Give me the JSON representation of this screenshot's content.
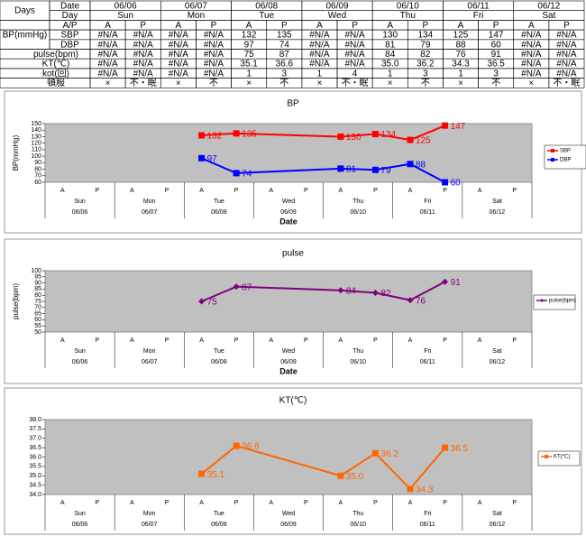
{
  "table": {
    "rows": [
      {
        "head": [
          "Days",
          "Date"
        ],
        "cells": [
          "06/06",
          "06/07",
          "06/08",
          "06/09",
          "06/10",
          "06/11",
          "06/12"
        ]
      },
      {
        "head": [
          "Day"
        ],
        "cells": [
          "Sun",
          "Mon",
          "Tue",
          "Wed",
          "Thu",
          "Fri",
          "Sat"
        ]
      },
      {
        "head": [
          "A/P"
        ],
        "cells": [
          "A",
          "P",
          "A",
          "P",
          "A",
          "P",
          "A",
          "P",
          "A",
          "P",
          "A",
          "P",
          "A",
          "P"
        ]
      },
      {
        "head": [
          "BP(mmHg)",
          "SBP"
        ],
        "cells": [
          "#N/A",
          "#N/A",
          "#N/A",
          "#N/A",
          "132",
          "135",
          "#N/A",
          "#N/A",
          "130",
          "134",
          "125",
          "147",
          "#N/A",
          "#N/A"
        ]
      },
      {
        "head": [
          "DBP"
        ],
        "cells": [
          "#N/A",
          "#N/A",
          "#N/A",
          "#N/A",
          "97",
          "74",
          "#N/A",
          "#N/A",
          "81",
          "79",
          "88",
          "60",
          "#N/A",
          "#N/A"
        ]
      },
      {
        "head": [
          "pulse(bpm)"
        ],
        "cells": [
          "#N/A",
          "#N/A",
          "#N/A",
          "#N/A",
          "75",
          "87",
          "#N/A",
          "#N/A",
          "84",
          "82",
          "76",
          "91",
          "#N/A",
          "#N/A"
        ]
      },
      {
        "head": [
          "KT(℃)"
        ],
        "cells": [
          "#N/A",
          "#N/A",
          "#N/A",
          "#N/A",
          "35.1",
          "36.6",
          "#N/A",
          "#N/A",
          "35.0",
          "36.2",
          "34.3",
          "36.5",
          "#N/A",
          "#N/A"
        ]
      },
      {
        "head": [
          "kot(回)"
        ],
        "cells": [
          "#N/A",
          "#N/A",
          "#N/A",
          "#N/A",
          "1",
          "3",
          "1",
          "4",
          "1",
          "3",
          "1",
          "3",
          "#N/A",
          "#N/A"
        ]
      },
      {
        "head": [
          "頓服"
        ],
        "cells": [
          "×",
          "不・眠",
          "×",
          "不",
          "×",
          "不",
          "×",
          "不・眠",
          "×",
          "不",
          "×",
          "不",
          "×",
          "不・眠"
        ]
      }
    ]
  },
  "chart_data": [
    {
      "type": "line",
      "title": "BP",
      "y_label": "BP(mmHg)",
      "x_label": "Date",
      "categories": [
        "A",
        "P",
        "A",
        "P",
        "A",
        "P",
        "A",
        "P",
        "A",
        "P",
        "A",
        "P",
        "A",
        "P"
      ],
      "days": [
        "Sun",
        "Mon",
        "Tue",
        "Wed",
        "Thu",
        "Fri",
        "Sat"
      ],
      "dates": [
        "06/06",
        "06/07",
        "06/08",
        "06/09",
        "06/10",
        "06/11",
        "06/12"
      ],
      "ylim": [
        60,
        150
      ],
      "yticks": [
        60,
        70,
        80,
        90,
        100,
        110,
        120,
        130,
        140,
        150
      ],
      "span_gaps": true,
      "legend": "right",
      "background": "#c0c0c0",
      "series": [
        {
          "name": "SBP",
          "color": "#ff0000",
          "marker": "square",
          "values": [
            null,
            null,
            null,
            null,
            132,
            135,
            null,
            null,
            130,
            134,
            125,
            147,
            null,
            null
          ]
        },
        {
          "name": "DBP",
          "color": "#0000ff",
          "marker": "square",
          "values": [
            null,
            null,
            null,
            null,
            97,
            74,
            null,
            null,
            81,
            79,
            88,
            60,
            null,
            null
          ]
        }
      ]
    },
    {
      "type": "line",
      "title": "pulse",
      "y_label": "pulse(bpm)",
      "x_label": "Date",
      "categories": [
        "A",
        "P",
        "A",
        "P",
        "A",
        "P",
        "A",
        "P",
        "A",
        "P",
        "A",
        "P",
        "A",
        "P"
      ],
      "days": [
        "Sun",
        "Mon",
        "Tue",
        "Wed",
        "Thu",
        "Fri",
        "Sat"
      ],
      "dates": [
        "06/06",
        "06/07",
        "06/08",
        "06/09",
        "06/10",
        "06/11",
        "06/12"
      ],
      "ylim": [
        50,
        100
      ],
      "yticks": [
        50,
        55,
        60,
        65,
        70,
        75,
        80,
        85,
        90,
        95,
        100
      ],
      "span_gaps": true,
      "legend": "right",
      "background": "#c0c0c0",
      "series": [
        {
          "name": "pulse(bpm)",
          "color": "#800080",
          "marker": "diamond",
          "values": [
            null,
            null,
            null,
            null,
            75,
            87,
            null,
            null,
            84,
            82,
            76,
            91,
            null,
            null
          ]
        }
      ]
    },
    {
      "type": "line",
      "title": "KT(℃)",
      "categories": [
        "A",
        "P",
        "A",
        "P",
        "A",
        "P",
        "A",
        "P",
        "A",
        "P",
        "A",
        "P",
        "A",
        "P"
      ],
      "days": [
        "Sun",
        "Mon",
        "Tue",
        "Wed",
        "Thu",
        "Fri",
        "Sat"
      ],
      "dates": [
        "06/06",
        "06/07",
        "06/08",
        "06/09",
        "06/10",
        "06/11",
        "06/12"
      ],
      "ylim": [
        34,
        38
      ],
      "yticks": [
        {
          "value": 34,
          "label": "34.0"
        },
        34.5,
        {
          "value": 35,
          "label": "35.0"
        },
        35.5,
        {
          "value": 36,
          "label": "36.0"
        },
        36.5,
        {
          "value": 37,
          "label": "37.0"
        },
        37.5,
        {
          "value": 38,
          "label": "38.0"
        }
      ],
      "span_gaps": true,
      "legend": "right",
      "background": "#c0c0c0",
      "series": [
        {
          "name": "KT(℃)",
          "color": "#ff6600",
          "marker": "square",
          "values": [
            null,
            null,
            null,
            null,
            35.1,
            36.6,
            null,
            null,
            35,
            36.2,
            34.3,
            36.5,
            null,
            null
          ],
          "value_labels": [
            null,
            null,
            null,
            null,
            "35.1",
            "36.6",
            null,
            null,
            "35.0",
            "36.2",
            "34.3",
            "36.5",
            null,
            null
          ]
        }
      ]
    }
  ]
}
